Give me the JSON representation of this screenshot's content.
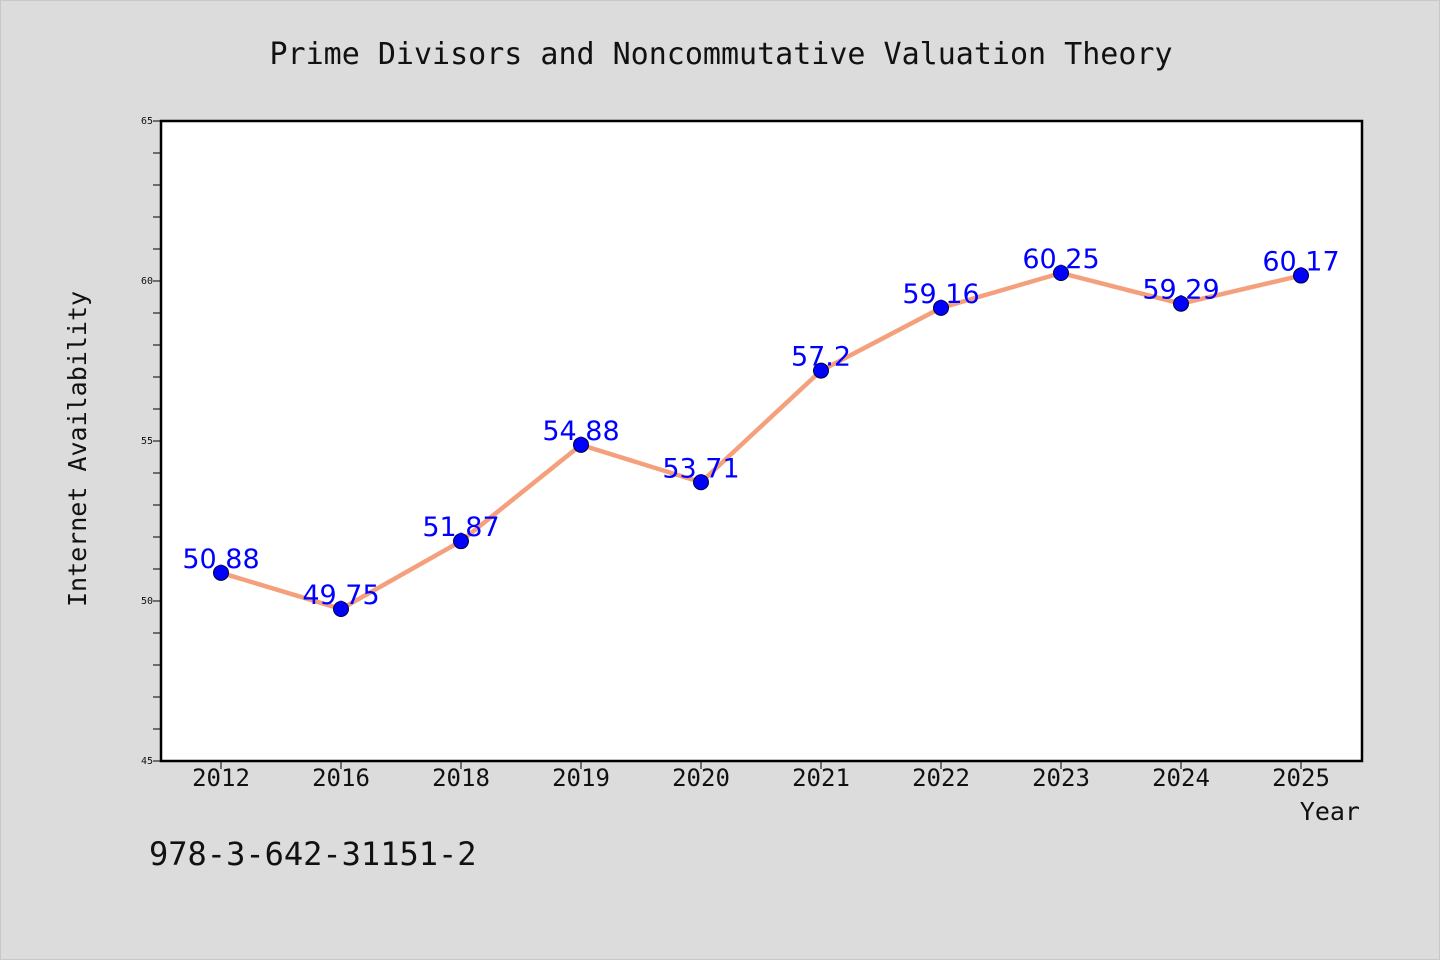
{
  "colors": {
    "background": "#dcdcdc",
    "plot_background": "#ffffff",
    "line": "#f4a07c",
    "marker": "#0000ff",
    "data_label": "#0000ff",
    "frame": "#000000"
  },
  "footer": {
    "isbn": "978-3-642-31151-2"
  },
  "chart_data": {
    "type": "line",
    "title": "Prime Divisors and Noncommutative Valuation Theory",
    "xlabel": "Year",
    "ylabel": "Internet Availability",
    "categories": [
      "2012",
      "2016",
      "2018",
      "2019",
      "2020",
      "2021",
      "2022",
      "2023",
      "2024",
      "2025"
    ],
    "series": [
      {
        "values": [
          50.88,
          49.75,
          51.87,
          54.88,
          53.71,
          57.2,
          59.16,
          60.25,
          59.29,
          60.17
        ],
        "labels": [
          "50.88",
          "49.75",
          "51.87",
          "54.88",
          "53.71",
          "57.2",
          "59.16",
          "60.25",
          "59.29",
          "60.17"
        ],
        "marker": "circle"
      }
    ],
    "ylim": [
      45,
      65
    ],
    "yticks": [
      "45",
      "50",
      "55",
      "60",
      "65"
    ],
    "grid": false,
    "legend": "none"
  }
}
